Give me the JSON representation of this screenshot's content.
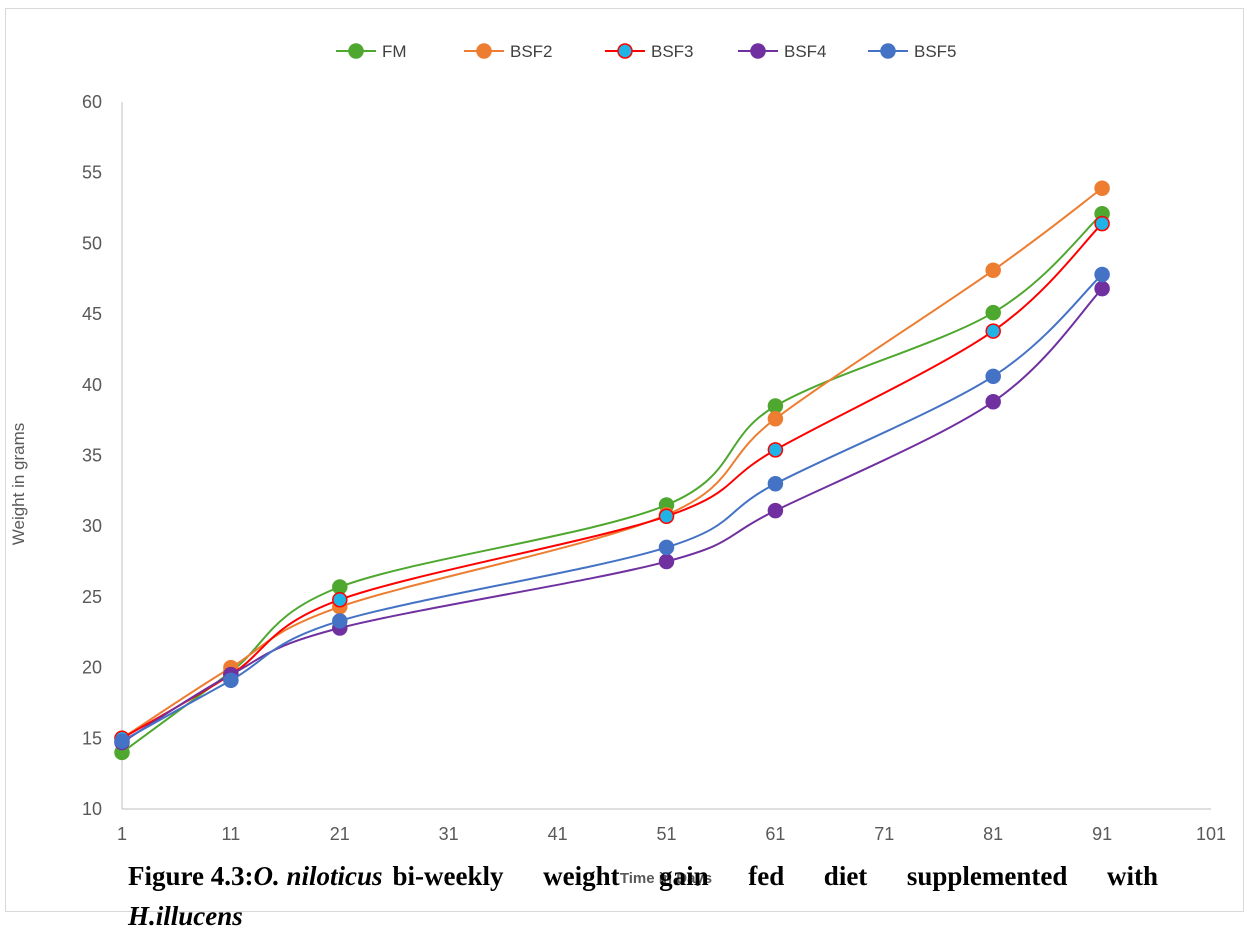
{
  "chart_data": {
    "type": "line",
    "x": [
      1,
      11,
      21,
      51,
      61,
      81,
      91
    ],
    "series": [
      {
        "name": "FM",
        "color": "#4ea72e",
        "marker_fill": "#4ea72e",
        "values": [
          14.0,
          19.7,
          25.7,
          31.5,
          38.5,
          45.1,
          52.1
        ]
      },
      {
        "name": "BSF2",
        "color": "#ed7d31",
        "marker_fill": "#ed7d31",
        "values": [
          15.0,
          20.0,
          24.3,
          30.8,
          37.6,
          48.1,
          53.9
        ]
      },
      {
        "name": "BSF3",
        "color": "#ff0000",
        "marker_fill": "#1fb3e6",
        "values": [
          15.0,
          19.5,
          24.8,
          30.7,
          35.4,
          43.8,
          51.4
        ]
      },
      {
        "name": "BSF4",
        "color": "#7030a0",
        "marker_fill": "#7030a0",
        "values": [
          14.7,
          19.5,
          22.8,
          27.5,
          31.1,
          38.8,
          46.8
        ]
      },
      {
        "name": "BSF5",
        "color": "#4472c4",
        "marker_fill": "#4472c4",
        "values": [
          14.8,
          19.1,
          23.3,
          28.5,
          33.0,
          40.6,
          47.8
        ]
      }
    ],
    "xlim": [
      1,
      101
    ],
    "ylim": [
      10,
      60
    ],
    "x_ticks": [
      1,
      11,
      21,
      31,
      41,
      51,
      61,
      71,
      81,
      91,
      101
    ],
    "y_ticks": [
      10,
      15,
      20,
      25,
      30,
      35,
      40,
      45,
      50,
      55,
      60
    ],
    "xlabel": "Time in Days",
    "ylabel": "Weight in grams",
    "legend_position": "top",
    "grid": false
  },
  "caption": {
    "label": "Figure 4.3:",
    "species": "O. niloticus",
    "text": "bi-weekly weight gain fed diet supplemented with",
    "species2": "H.illucens"
  }
}
